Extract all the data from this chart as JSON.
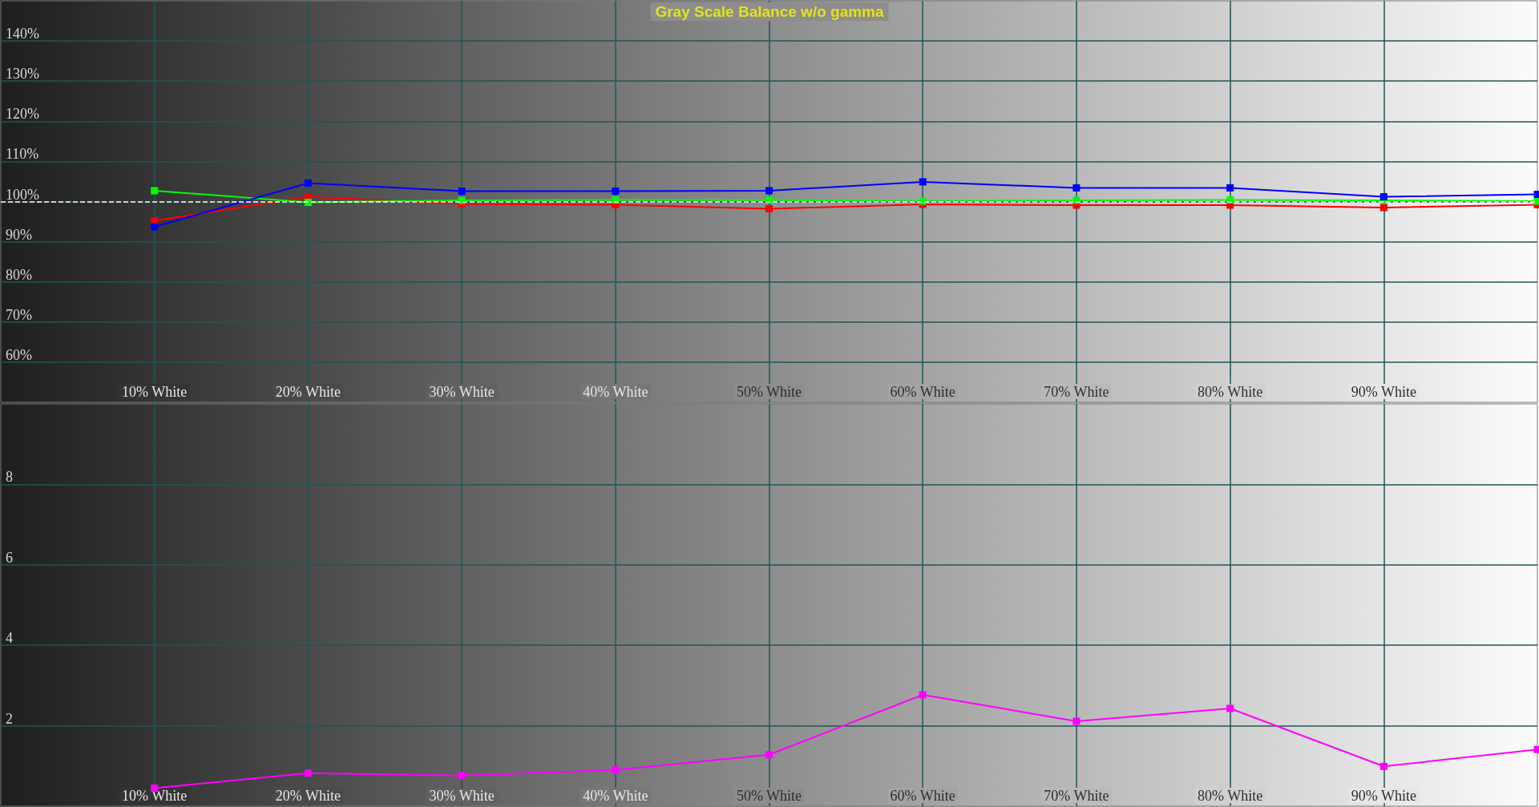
{
  "chart_data": [
    {
      "type": "line",
      "title": "Gray Scale Balance w/o gamma",
      "x": [
        10,
        20,
        30,
        40,
        50,
        60,
        70,
        80,
        90,
        100
      ],
      "xlim": [
        0,
        100
      ],
      "xticks": [
        {
          "value": 10,
          "label": "10% White"
        },
        {
          "value": 20,
          "label": "20% White"
        },
        {
          "value": 30,
          "label": "30% White"
        },
        {
          "value": 40,
          "label": "40% White"
        },
        {
          "value": 50,
          "label": "50% White"
        },
        {
          "value": 60,
          "label": "60% White"
        },
        {
          "value": 70,
          "label": "70% White"
        },
        {
          "value": 80,
          "label": "80% White"
        },
        {
          "value": 90,
          "label": "90% White"
        }
      ],
      "ylim": [
        50,
        150
      ],
      "yticks": [
        {
          "value": 60,
          "label": "60%"
        },
        {
          "value": 70,
          "label": "70%"
        },
        {
          "value": 80,
          "label": "80%"
        },
        {
          "value": 90,
          "label": "90%"
        },
        {
          "value": 100,
          "label": "100%"
        },
        {
          "value": 110,
          "label": "110%"
        },
        {
          "value": 120,
          "label": "120%"
        },
        {
          "value": 130,
          "label": "130%"
        },
        {
          "value": 140,
          "label": "140%"
        }
      ],
      "series": [
        {
          "color": "#ff0000",
          "values": [
            95.2,
            101.2,
            99.4,
            99.2,
            98.2,
            99.3,
            99.1,
            99.1,
            98.5,
            99.2
          ]
        },
        {
          "color": "#00ff00",
          "values": [
            102.7,
            99.8,
            100.3,
            100.4,
            100.4,
            100.1,
            100.3,
            100.4,
            100.3,
            100.1
          ]
        },
        {
          "color": "#0000ff",
          "values": [
            93.7,
            104.6,
            102.6,
            102.6,
            102.7,
            104.9,
            103.4,
            103.4,
            101.2,
            101.8
          ]
        }
      ],
      "marker": "square",
      "grid": true,
      "ref_lines": [
        {
          "axis": "y",
          "value": 100,
          "color": "#ffffff",
          "line_style": "dashed"
        }
      ]
    },
    {
      "type": "line",
      "x": [
        10,
        20,
        30,
        40,
        50,
        60,
        70,
        80,
        90,
        100
      ],
      "xlim": [
        0,
        100
      ],
      "xticks": [
        {
          "value": 10,
          "label": "10% White"
        },
        {
          "value": 20,
          "label": "20% White"
        },
        {
          "value": 30,
          "label": "30% White"
        },
        {
          "value": 40,
          "label": "40% White"
        },
        {
          "value": 50,
          "label": "50% White"
        },
        {
          "value": 60,
          "label": "60% White"
        },
        {
          "value": 70,
          "label": "70% White"
        },
        {
          "value": 80,
          "label": "80% White"
        },
        {
          "value": 90,
          "label": "90% White"
        }
      ],
      "ylim": [
        0,
        10
      ],
      "yticks": [
        2,
        4,
        6,
        8
      ],
      "series": [
        {
          "color": "#ff00ff",
          "values": [
            0.45,
            0.82,
            0.76,
            0.9,
            1.28,
            2.77,
            2.11,
            2.43,
            0.99,
            1.41
          ]
        }
      ],
      "marker": "square",
      "grid": true
    }
  ]
}
